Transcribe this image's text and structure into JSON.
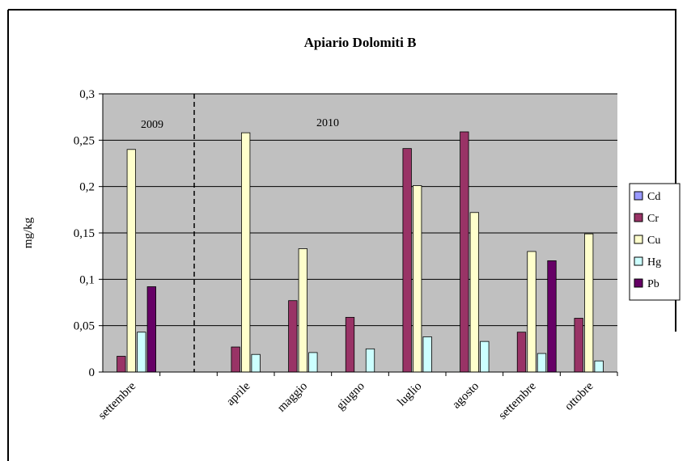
{
  "chart_data": {
    "type": "bar",
    "title": "Apiario Dolomiti B",
    "xlabel": "",
    "ylabel": "mg/kg",
    "ylim": [
      0,
      0.3
    ],
    "yticks": [
      0,
      0.05,
      0.1,
      0.15,
      0.2,
      0.25,
      0.3
    ],
    "ytick_labels": [
      "0",
      "0,05",
      "0,1",
      "0,15",
      "0,2",
      "0,25",
      "0,3"
    ],
    "grid": true,
    "plot_background": "#c0c0c0",
    "legend_position": "right",
    "period_labels": [
      "2009",
      "2010"
    ],
    "period_separator": "dashed vertical line between 2009 and 2010",
    "categories": [
      "settembre",
      "",
      "aprile",
      "maggio",
      "giugno",
      "luglio",
      "agosto",
      "settembre",
      "ottobre"
    ],
    "series": [
      {
        "name": "Cd",
        "color": "#9999ff",
        "values": [
          0,
          0,
          0,
          0,
          0,
          0,
          0,
          0,
          0
        ]
      },
      {
        "name": "Cr",
        "color": "#993366",
        "values": [
          0.017,
          null,
          0.027,
          0.077,
          0.059,
          0.241,
          0.259,
          0.043,
          0.058
        ]
      },
      {
        "name": "Cu",
        "color": "#ffffcc",
        "values": [
          0.24,
          null,
          0.258,
          0.133,
          0,
          0.201,
          0.172,
          0.13,
          0.149
        ]
      },
      {
        "name": "Hg",
        "color": "#ccffff",
        "values": [
          0.043,
          null,
          0.019,
          0.021,
          0.025,
          0.038,
          0.033,
          0.02,
          0.012
        ]
      },
      {
        "name": "Pb",
        "color": "#660066",
        "values": [
          0.092,
          null,
          0,
          0,
          0,
          0,
          0,
          0.12,
          0
        ]
      }
    ]
  }
}
